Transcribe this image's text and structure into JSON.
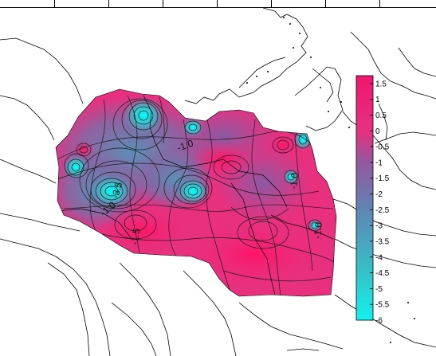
{
  "colorbar": {
    "tick_labels": [
      "1.5",
      "1",
      "0.5",
      "0",
      "-0.5",
      "-1",
      "-1.5",
      "-2",
      "-2.5",
      "-3",
      "-3.5",
      "-4",
      "-4.5",
      "-5",
      "-5.5",
      "-6"
    ],
    "min": -6,
    "max": 1.75,
    "color_stops": [
      {
        "value": 1.75,
        "color": "#f0166e"
      },
      {
        "value": 0.0,
        "color": "#e8307f"
      },
      {
        "value": -1.0,
        "color": "#9457a0"
      },
      {
        "value": -2.5,
        "color": "#5f86b1"
      },
      {
        "value": -4.5,
        "color": "#35c2c8"
      },
      {
        "value": -6.0,
        "color": "#12f2ee"
      }
    ]
  },
  "contour_labels": [
    {
      "text": "-1.0",
      "id": "a"
    },
    {
      "text": "-3.5",
      "id": "b"
    },
    {
      "text": "-1.0",
      "id": "c"
    },
    {
      "text": "-1.5",
      "id": "d"
    },
    {
      "text": "-1.0",
      "id": "e"
    },
    {
      "text": "-1.0",
      "id": "f"
    }
  ]
}
